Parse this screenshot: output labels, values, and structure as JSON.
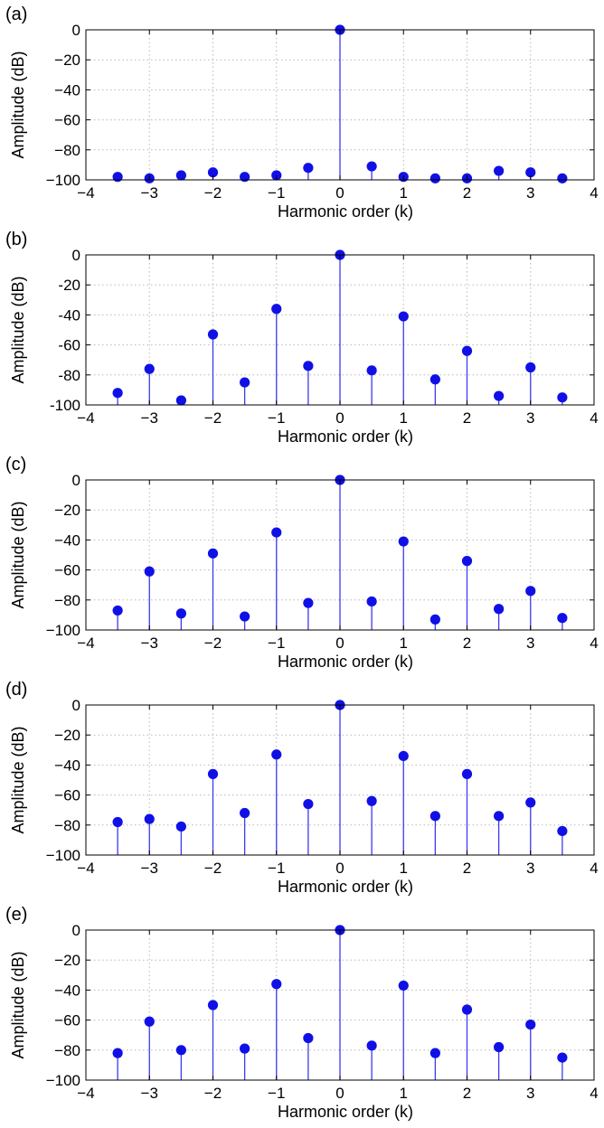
{
  "colors": {
    "marker": "#1010e6",
    "stem": "#3b3bf0",
    "grid": "#b8b8b8",
    "axis": "#000000"
  },
  "chart_data": [
    {
      "type": "stem",
      "panel_label": "(a)",
      "xlabel": "Harmonic order (k)",
      "ylabel": "Amplitude (dB)",
      "xlim": [
        -4,
        4
      ],
      "ylim": [
        -100,
        0
      ],
      "xticks": [
        -4,
        -3,
        -2,
        -1,
        0,
        1,
        2,
        3,
        4
      ],
      "yticks": [
        0,
        -20,
        -40,
        -60,
        -80,
        -100
      ],
      "xtick_labels": [
        "−4",
        "−3",
        "−2",
        "−1",
        "0",
        "1",
        "2",
        "3",
        "4"
      ],
      "ytick_labels": [
        "0",
        "−20",
        "−40",
        "−60",
        "−80",
        "−100"
      ],
      "grid": true,
      "x": [
        -3.5,
        -3,
        -2.5,
        -2,
        -1.5,
        -1,
        -0.5,
        0,
        0.5,
        1,
        1.5,
        2,
        2.5,
        3,
        3.5
      ],
      "y": [
        -98,
        -99,
        -97,
        -95,
        -98,
        -97,
        -92,
        0,
        -91,
        -98,
        -99,
        -99,
        -94,
        -95,
        -99
      ]
    },
    {
      "type": "stem",
      "panel_label": "(b)",
      "xlabel": "Harmonic order (k)",
      "ylabel": "Amplitude (dB)",
      "xlim": [
        -4,
        4
      ],
      "ylim": [
        -100,
        0
      ],
      "xticks": [
        -4,
        -3,
        -2,
        -1,
        0,
        1,
        2,
        3,
        4
      ],
      "yticks": [
        0,
        -20,
        -40,
        -60,
        -80,
        -100
      ],
      "xtick_labels": [
        "−4",
        "−3",
        "−2",
        "−1",
        "0",
        "1",
        "2",
        "3",
        "4"
      ],
      "ytick_labels": [
        "0",
        "-20",
        "-40",
        "-60",
        "-80",
        "-100"
      ],
      "grid": true,
      "x": [
        -3.5,
        -3,
        -2.5,
        -2,
        -1.5,
        -1,
        -0.5,
        0,
        0.5,
        1,
        1.5,
        2,
        2.5,
        3,
        3.5
      ],
      "y": [
        -92,
        -76,
        -97,
        -53,
        -85,
        -36,
        -74,
        0,
        -77,
        -41,
        -83,
        -64,
        -94,
        -75,
        -95
      ]
    },
    {
      "type": "stem",
      "panel_label": "(c)",
      "xlabel": "Harmonic order (k)",
      "ylabel": "Amplitude (dB)",
      "xlim": [
        -4,
        4
      ],
      "ylim": [
        -100,
        0
      ],
      "xticks": [
        -4,
        -3,
        -2,
        -1,
        0,
        1,
        2,
        3,
        4
      ],
      "yticks": [
        0,
        -20,
        -40,
        -60,
        -80,
        -100
      ],
      "xtick_labels": [
        "−4",
        "−3",
        "−2",
        "−1",
        "0",
        "1",
        "2",
        "3",
        "4"
      ],
      "ytick_labels": [
        "0",
        "−20",
        "−40",
        "−60",
        "−80",
        "−100"
      ],
      "grid": true,
      "x": [
        -3.5,
        -3,
        -2.5,
        -2,
        -1.5,
        -1,
        -0.5,
        0,
        0.5,
        1,
        1.5,
        2,
        2.5,
        3,
        3.5
      ],
      "y": [
        -87,
        -61,
        -89,
        -49,
        -91,
        -35,
        -82,
        0,
        -81,
        -41,
        -93,
        -54,
        -86,
        -74,
        -92
      ]
    },
    {
      "type": "stem",
      "panel_label": "(d)",
      "xlabel": "Harmonic order (k)",
      "ylabel": "Amplitude (dB)",
      "xlim": [
        -4,
        4
      ],
      "ylim": [
        -100,
        0
      ],
      "xticks": [
        -4,
        -3,
        -2,
        -1,
        0,
        1,
        2,
        3,
        4
      ],
      "yticks": [
        0,
        -20,
        -40,
        -60,
        -80,
        -100
      ],
      "xtick_labels": [
        "−4",
        "−3",
        "−2",
        "−1",
        "0",
        "1",
        "2",
        "3",
        "4"
      ],
      "ytick_labels": [
        "0",
        "−20",
        "−40",
        "−60",
        "−80",
        "−100"
      ],
      "grid": true,
      "x": [
        -3.5,
        -3,
        -2.5,
        -2,
        -1.5,
        -1,
        -0.5,
        0,
        0.5,
        1,
        1.5,
        2,
        2.5,
        3,
        3.5
      ],
      "y": [
        -78,
        -76,
        -81,
        -46,
        -72,
        -33,
        -66,
        0,
        -64,
        -34,
        -74,
        -46,
        -74,
        -65,
        -84
      ]
    },
    {
      "type": "stem",
      "panel_label": "(e)",
      "xlabel": "Harmonic order (k)",
      "ylabel": "Amplitude (dB)",
      "xlim": [
        -4,
        4
      ],
      "ylim": [
        -100,
        0
      ],
      "xticks": [
        -4,
        -3,
        -2,
        -1,
        0,
        1,
        2,
        3,
        4
      ],
      "yticks": [
        0,
        -20,
        -40,
        -60,
        -80,
        -100
      ],
      "xtick_labels": [
        "−4",
        "−3",
        "−2",
        "−1",
        "0",
        "1",
        "2",
        "3",
        "4"
      ],
      "ytick_labels": [
        "0",
        "−20",
        "−40",
        "−60",
        "−80",
        "−100"
      ],
      "grid": true,
      "x": [
        -3.5,
        -3,
        -2.5,
        -2,
        -1.5,
        -1,
        -0.5,
        0,
        0.5,
        1,
        1.5,
        2,
        2.5,
        3,
        3.5
      ],
      "y": [
        -82,
        -61,
        -80,
        -50,
        -79,
        -36,
        -72,
        0,
        -77,
        -37,
        -82,
        -53,
        -78,
        -63,
        -85
      ]
    }
  ]
}
